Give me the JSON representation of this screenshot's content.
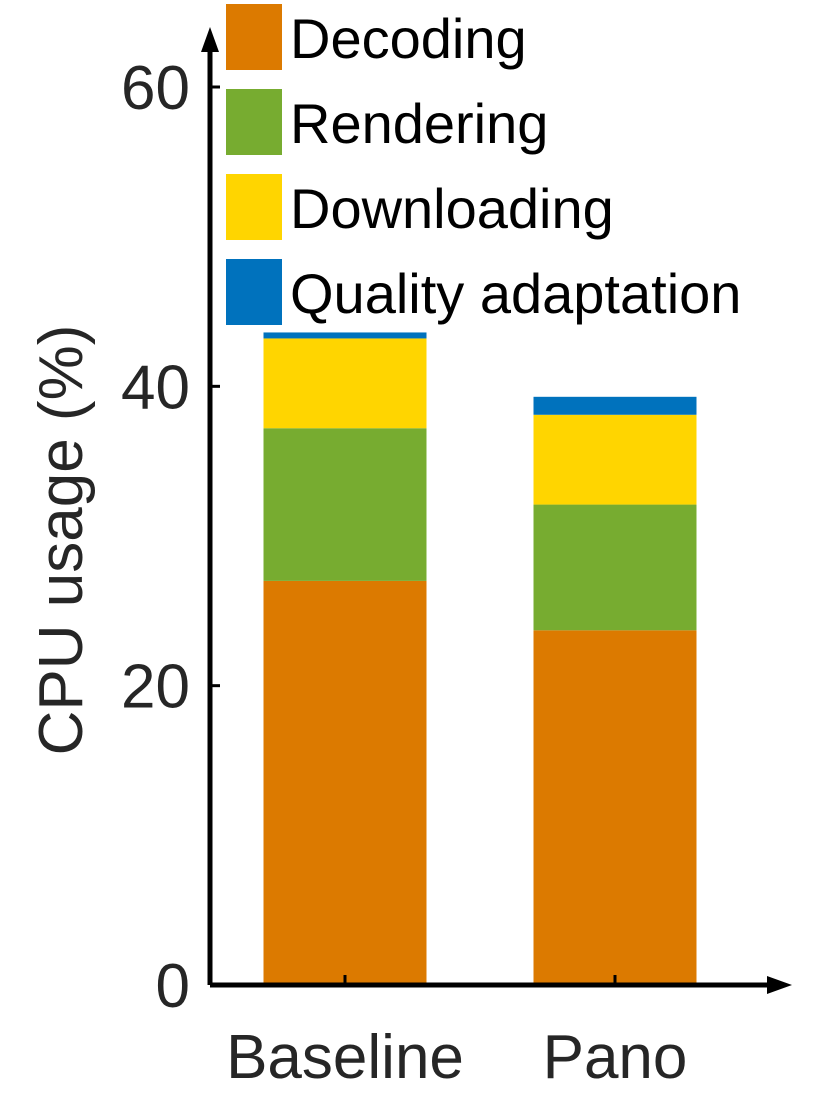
{
  "chart_data": {
    "type": "bar",
    "stacked": true,
    "categories": [
      "Baseline",
      "Pano"
    ],
    "series": [
      {
        "name": "Decoding",
        "color": "#DC7A00",
        "values": [
          27.0,
          23.7
        ]
      },
      {
        "name": "Rendering",
        "color": "#77AC30",
        "values": [
          10.2,
          8.4
        ]
      },
      {
        "name": "Downloading",
        "color": "#FFD500",
        "values": [
          6.0,
          6.0
        ]
      },
      {
        "name": "Quality adaptation",
        "color": "#0072BD",
        "values": [
          0.4,
          1.2
        ]
      }
    ],
    "title": "",
    "xlabel": "",
    "ylabel": "CPU usage (%)",
    "ylim": [
      0,
      60
    ],
    "yticks": [
      0,
      20,
      40,
      60
    ],
    "legend_position": "top-right",
    "grid": false
  }
}
